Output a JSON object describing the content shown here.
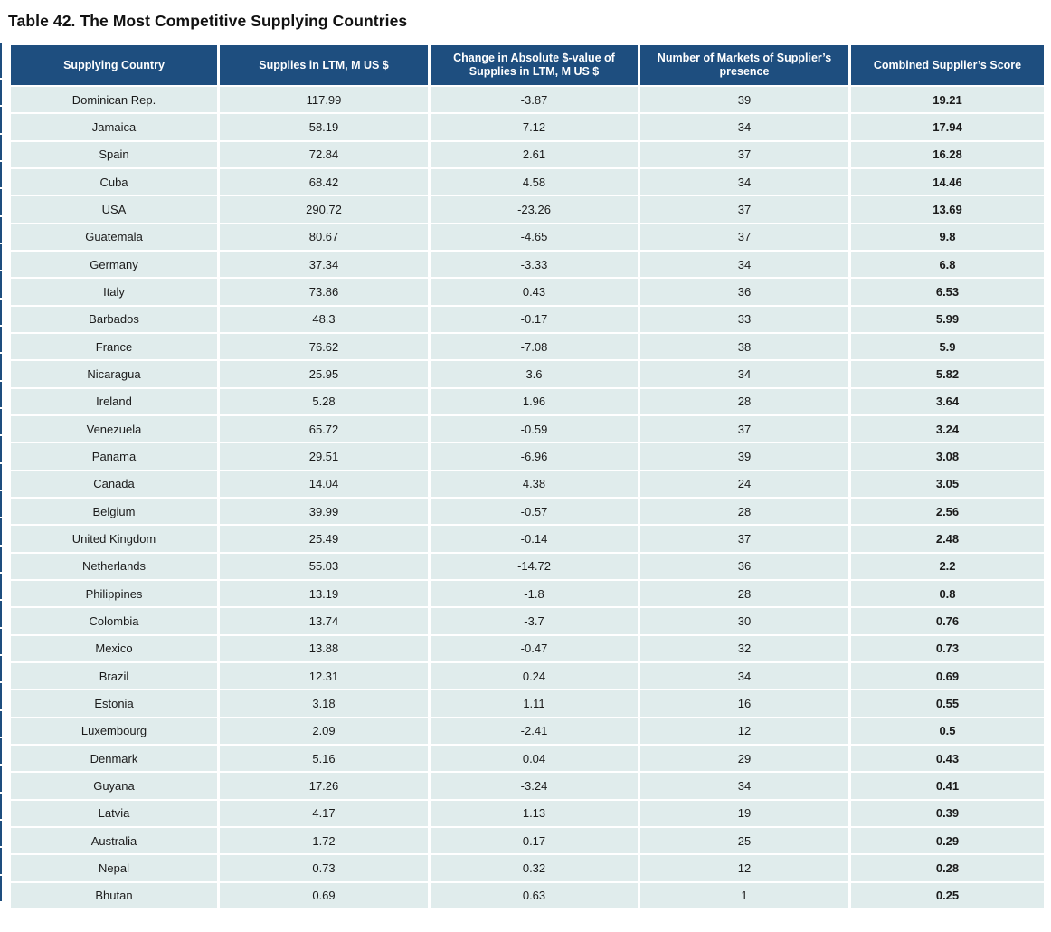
{
  "title": "Table 42. The Most Competitive Supplying Countries",
  "colors": {
    "header_bg": "#1e4e7f",
    "header_text": "#ffffff",
    "row_bg": "#e0ecec",
    "body_text": "#1b1b1b"
  },
  "table": {
    "columns": [
      {
        "id": "supplying-country",
        "label": "Supplying Country"
      },
      {
        "id": "supplies-in-ltm",
        "label": "Supplies in LTM, M US $"
      },
      {
        "id": "change-in-absolute-value",
        "label": "Change in Absolute $-value of Supplies in LTM, M US $"
      },
      {
        "id": "number-of-markets",
        "label": "Number of Markets of Supplier’s presence"
      },
      {
        "id": "combined-score",
        "label": "Combined Supplier’s Score"
      }
    ],
    "rows": [
      [
        "Dominican Rep.",
        "117.99",
        "-3.87",
        "39",
        "19.21"
      ],
      [
        "Jamaica",
        "58.19",
        "7.12",
        "34",
        "17.94"
      ],
      [
        "Spain",
        "72.84",
        "2.61",
        "37",
        "16.28"
      ],
      [
        "Cuba",
        "68.42",
        "4.58",
        "34",
        "14.46"
      ],
      [
        "USA",
        "290.72",
        "-23.26",
        "37",
        "13.69"
      ],
      [
        "Guatemala",
        "80.67",
        "-4.65",
        "37",
        "9.8"
      ],
      [
        "Germany",
        "37.34",
        "-3.33",
        "34",
        "6.8"
      ],
      [
        "Italy",
        "73.86",
        "0.43",
        "36",
        "6.53"
      ],
      [
        "Barbados",
        "48.3",
        "-0.17",
        "33",
        "5.99"
      ],
      [
        "France",
        "76.62",
        "-7.08",
        "38",
        "5.9"
      ],
      [
        "Nicaragua",
        "25.95",
        "3.6",
        "34",
        "5.82"
      ],
      [
        "Ireland",
        "5.28",
        "1.96",
        "28",
        "3.64"
      ],
      [
        "Venezuela",
        "65.72",
        "-0.59",
        "37",
        "3.24"
      ],
      [
        "Panama",
        "29.51",
        "-6.96",
        "39",
        "3.08"
      ],
      [
        "Canada",
        "14.04",
        "4.38",
        "24",
        "3.05"
      ],
      [
        "Belgium",
        "39.99",
        "-0.57",
        "28",
        "2.56"
      ],
      [
        "United Kingdom",
        "25.49",
        "-0.14",
        "37",
        "2.48"
      ],
      [
        "Netherlands",
        "55.03",
        "-14.72",
        "36",
        "2.2"
      ],
      [
        "Philippines",
        "13.19",
        "-1.8",
        "28",
        "0.8"
      ],
      [
        "Colombia",
        "13.74",
        "-3.7",
        "30",
        "0.76"
      ],
      [
        "Mexico",
        "13.88",
        "-0.47",
        "32",
        "0.73"
      ],
      [
        "Brazil",
        "12.31",
        "0.24",
        "34",
        "0.69"
      ],
      [
        "Estonia",
        "3.18",
        "1.11",
        "16",
        "0.55"
      ],
      [
        "Luxembourg",
        "2.09",
        "-2.41",
        "12",
        "0.5"
      ],
      [
        "Denmark",
        "5.16",
        "0.04",
        "29",
        "0.43"
      ],
      [
        "Guyana",
        "17.26",
        "-3.24",
        "34",
        "0.41"
      ],
      [
        "Latvia",
        "4.17",
        "1.13",
        "19",
        "0.39"
      ],
      [
        "Australia",
        "1.72",
        "0.17",
        "25",
        "0.29"
      ],
      [
        "Nepal",
        "0.73",
        "0.32",
        "12",
        "0.28"
      ],
      [
        "Bhutan",
        "0.69",
        "0.63",
        "1",
        "0.25"
      ]
    ]
  }
}
